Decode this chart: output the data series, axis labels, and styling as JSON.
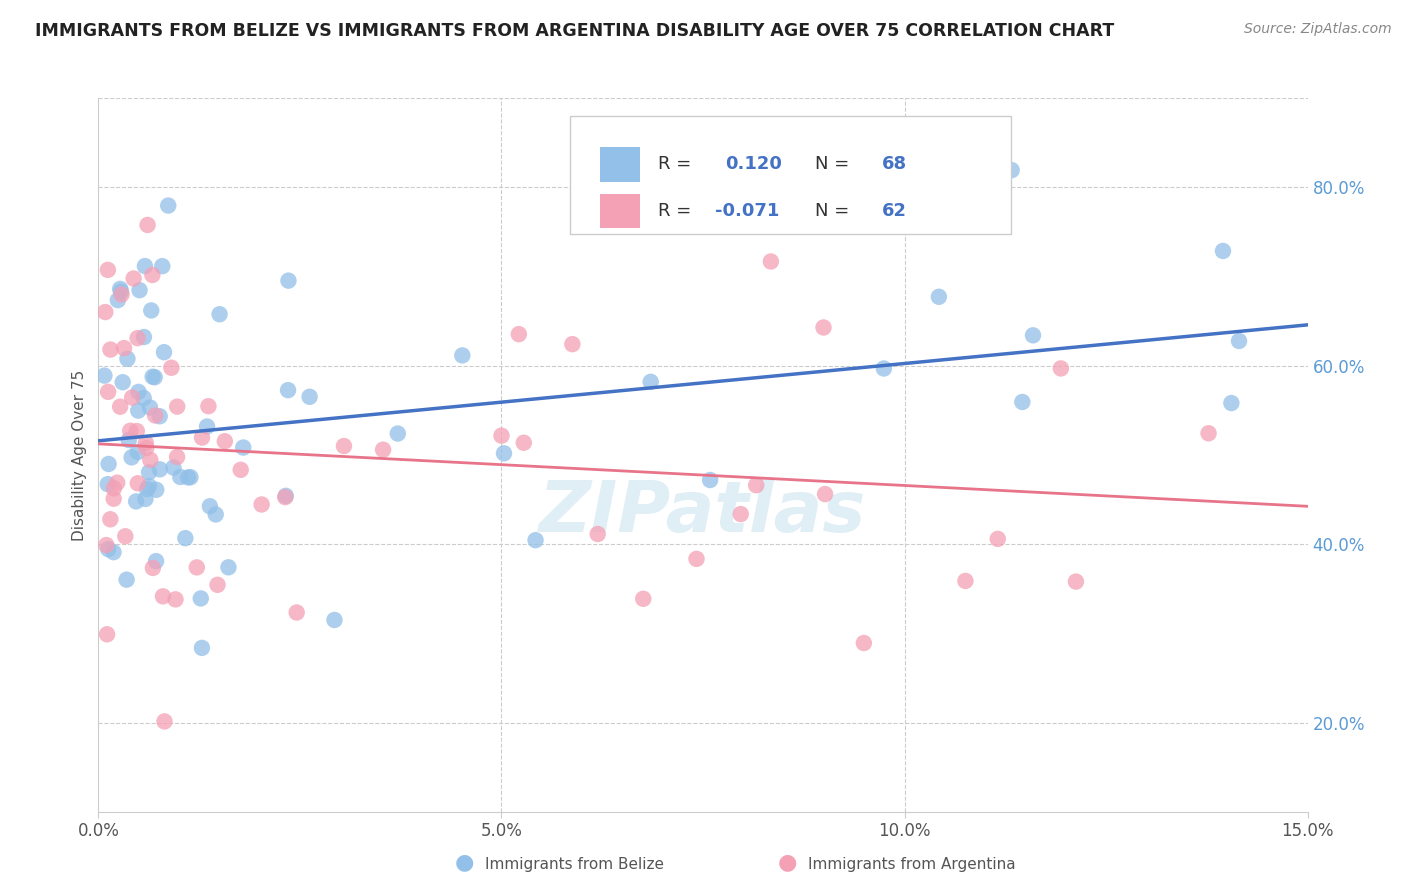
{
  "title": "IMMIGRANTS FROM BELIZE VS IMMIGRANTS FROM ARGENTINA DISABILITY AGE OVER 75 CORRELATION CHART",
  "source_text": "Source: ZipAtlas.com",
  "ylabel": "Disability Age Over 75",
  "xlim": [
    0.0,
    15.0
  ],
  "ylim": [
    10.0,
    90.0
  ],
  "x_ticks": [
    0.0,
    5.0,
    10.0,
    15.0
  ],
  "x_tick_labels": [
    "0.0%",
    "5.0%",
    "10.0%",
    "15.0%"
  ],
  "y_ticks_right": [
    20.0,
    40.0,
    60.0,
    80.0
  ],
  "y_tick_labels_right": [
    "20.0%",
    "40.0%",
    "60.0%",
    "80.0%"
  ],
  "belize_color": "#92C0E8",
  "argentina_color": "#F4A0B5",
  "belize_line_color": "#4472C4",
  "argentina_line_color": "#E8748A",
  "belize_R": 0.12,
  "belize_N": 68,
  "argentina_R": -0.071,
  "argentina_N": 62,
  "watermark": "ZIPatlas",
  "background_color": "#ffffff",
  "grid_color": "#CCCCCC",
  "title_color": "#222222",
  "source_color": "#888888",
  "ylabel_color": "#555555",
  "tick_color": "#555555",
  "right_tick_color": "#5B9BD5",
  "legend_border_color": "#CCCCCC"
}
